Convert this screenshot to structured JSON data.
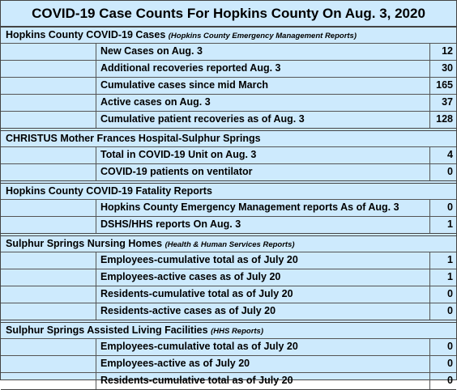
{
  "title": "COVID-19 Case Counts For Hopkins County On Aug. 3, 2020",
  "sections": [
    {
      "title": "Hopkins County COVID-19 Cases",
      "note": "(Hopkins County Emergency Management Reports)",
      "rows": [
        {
          "label": "New Cases on Aug. 3",
          "value": 12
        },
        {
          "label": "Additional recoveries reported Aug. 3",
          "value": 30
        },
        {
          "label": "Cumulative cases since mid March",
          "value": 165
        },
        {
          "label": "Active cases on Aug. 3",
          "value": 37
        },
        {
          "label": "Cumulative patient recoveries as of Aug. 3",
          "value": 128
        }
      ]
    },
    {
      "title": "CHRISTUS Mother Frances Hospital-Sulphur Springs",
      "rows": [
        {
          "label": "Total in COVID-19 Unit on Aug. 3",
          "value": 4
        },
        {
          "label": "COVID-19 patients on ventilator",
          "value": 0
        }
      ]
    },
    {
      "title": "Hopkins County COVID-19 Fatality Reports",
      "rows": [
        {
          "label": "Hopkins County Emergency Management reports As of Aug. 3",
          "value": 0
        },
        {
          "label": "DSHS/HHS reports On Aug. 3",
          "value": 1
        }
      ]
    },
    {
      "title": "Sulphur Springs Nursing Homes",
      "note": "(Health & Human Services Reports)",
      "rows": [
        {
          "label": "Employees-cumulative total as of July 20",
          "value": 1
        },
        {
          "label": "Employees-active cases as of July 20",
          "value": 1
        },
        {
          "label": "Residents-cumulative total as of July 20",
          "value": 0
        },
        {
          "label": "Residents-active cases as of July 20",
          "value": 0
        }
      ]
    },
    {
      "title": "Sulphur Springs Assisted Living Facilities",
      "note": "(HHS Reports)",
      "rows": [
        {
          "label": "Employees-cumulative total as of July 20",
          "value": 0
        },
        {
          "label": "Employees-active as of July 20",
          "value": 0
        },
        {
          "label": "Residents-cumulative total as of July 20",
          "value": 0
        }
      ]
    }
  ]
}
